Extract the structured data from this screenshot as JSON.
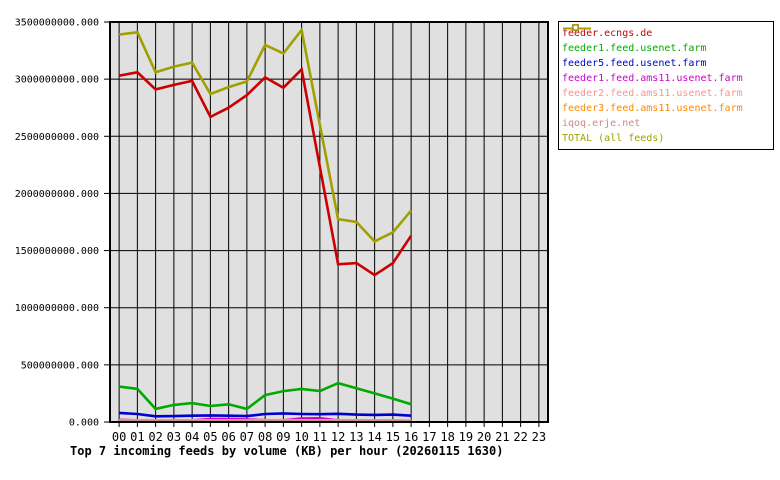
{
  "title": "Top 7 incoming feeds by volume (KB) per hour (20260115 1630)",
  "chart_data": {
    "type": "line",
    "xlabel": "",
    "ylabel": "",
    "x_categories": [
      "00",
      "01",
      "02",
      "03",
      "04",
      "05",
      "06",
      "07",
      "08",
      "09",
      "10",
      "11",
      "12",
      "13",
      "14",
      "15",
      "16",
      "17",
      "18",
      "19",
      "20",
      "21",
      "22",
      "23"
    ],
    "plotted_hours": 17,
    "ylim": [
      0,
      3500000000
    ],
    "y_tick_step": 500000000,
    "y_tick_labels": [
      "0.000",
      "500000000.000",
      "1000000000.000",
      "1500000000.000",
      "2000000000.000",
      "2500000000.000",
      "3000000000.000",
      "3500000000.000"
    ],
    "grid": true,
    "plot_bg_color": "#e0e0e0",
    "grid_color": "#000000",
    "legend_position": "outside-top-right",
    "series": [
      {
        "name": "feeder.ecngs.de",
        "color": "#cc0000",
        "values": [
          3030000000,
          3060000000,
          2910000000,
          2950000000,
          2985000000,
          2670000000,
          2750000000,
          2860000000,
          3015000000,
          2925000000,
          3085000000,
          2230000000,
          1380000000,
          1390000000,
          1285000000,
          1390000000,
          1630000000
        ]
      },
      {
        "name": "feeder1.feed.usenet.farm",
        "color": "#00aa00",
        "values": [
          310000000,
          290000000,
          115000000,
          150000000,
          165000000,
          140000000,
          155000000,
          115000000,
          235000000,
          270000000,
          290000000,
          270000000,
          340000000,
          295000000,
          250000000,
          205000000,
          155000000
        ]
      },
      {
        "name": "feeder5.feed.usenet.farm",
        "color": "#0000cc",
        "values": [
          80000000,
          70000000,
          50000000,
          52000000,
          55000000,
          58000000,
          55000000,
          52000000,
          70000000,
          75000000,
          70000000,
          68000000,
          72000000,
          65000000,
          62000000,
          65000000,
          55000000
        ]
      },
      {
        "name": "feeder1.feed.ams11.usenet.farm",
        "color": "#cc00cc",
        "values": [
          18000000,
          15000000,
          12000000,
          12000000,
          14000000,
          25000000,
          26000000,
          22000000,
          16000000,
          15000000,
          30000000,
          32000000,
          14000000,
          12000000,
          12000000,
          12000000,
          10000000
        ]
      },
      {
        "name": "feeder2.feed.ams11.usenet.farm",
        "color": "#ff9090",
        "values": [
          15000000,
          15000000,
          14000000,
          14000000,
          15000000,
          15000000,
          15000000,
          14000000,
          16000000,
          16000000,
          15000000,
          15000000,
          16000000,
          15000000,
          14000000,
          14000000,
          13000000
        ]
      },
      {
        "name": "feeder3.feed.ams11.usenet.farm",
        "color": "#ff8800",
        "values": [
          5000000,
          5000000,
          4000000,
          4000000,
          5000000,
          5000000,
          5000000,
          4000000,
          5000000,
          5000000,
          5000000,
          5000000,
          5000000,
          5000000,
          4000000,
          4000000,
          4000000
        ]
      },
      {
        "name": "iqoq.erje.net",
        "color": "#cc8888",
        "values": [
          8000000,
          8000000,
          7000000,
          7000000,
          8000000,
          8000000,
          8000000,
          7000000,
          8000000,
          8000000,
          8000000,
          8000000,
          8000000,
          8000000,
          7000000,
          7000000,
          7000000
        ]
      },
      {
        "name": "TOTAL (all feeds)",
        "color": "#a0a000",
        "values": [
          3390000000,
          3410000000,
          3060000000,
          3110000000,
          3145000000,
          2870000000,
          2930000000,
          2980000000,
          3300000000,
          3225000000,
          3430000000,
          2600000000,
          1775000000,
          1750000000,
          1580000000,
          1660000000,
          1850000000
        ]
      }
    ]
  }
}
